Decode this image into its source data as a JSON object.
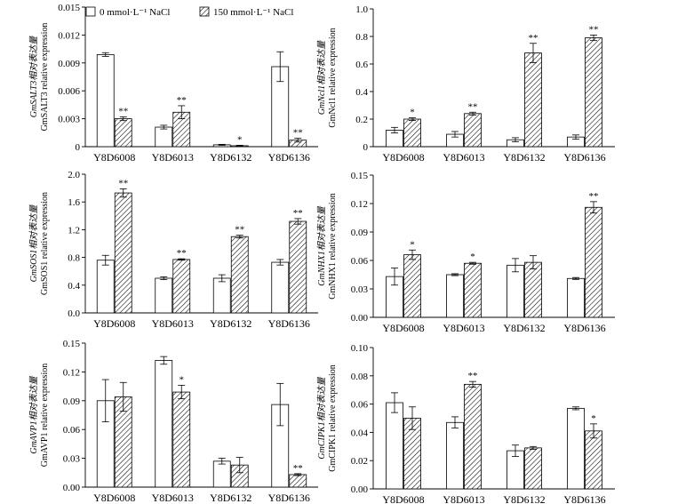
{
  "legend": {
    "ctrl_label": "0 mmol·L⁻¹ NaCl",
    "salt_label": "150 mmol·L⁻¹ NaCl"
  },
  "chart_data": [
    {
      "type": "bar",
      "categories": [
        "Y8D6008",
        "Y8D6013",
        "Y8D6132",
        "Y8D6136"
      ],
      "ylabel_cn": "GmSALT3相对表达量",
      "ylabel_en": "GmSALT3 relative expression",
      "ylim": [
        0,
        0.015
      ],
      "yticks": [
        "0",
        "0.003",
        "0.006",
        "0.009",
        "0.012",
        "0.015"
      ],
      "series": [
        {
          "name": "0 mmol·L⁻¹ NaCl",
          "values": [
            0.0099,
            0.0021,
            0.0002,
            0.0086
          ],
          "errors": [
            0.0002,
            0.0002,
            5e-05,
            0.0016
          ]
        },
        {
          "name": "150 mmol·L⁻¹ NaCl",
          "values": [
            0.003,
            0.0037,
            0.0001,
            0.0007
          ],
          "errors": [
            0.0002,
            0.0007,
            5e-05,
            0.0002
          ]
        }
      ],
      "annotations": [
        "**",
        "**",
        "*",
        "**"
      ]
    },
    {
      "type": "bar",
      "categories": [
        "Y8D6008",
        "Y8D6013",
        "Y8D6132",
        "Y8D6136"
      ],
      "ylabel_cn": "GmNcl1相对表达量",
      "ylabel_en": "GmNcl1 relative expression",
      "ylim": [
        0,
        1.0
      ],
      "yticks": [
        "0",
        "0.2",
        "0.4",
        "0.6",
        "0.8",
        "1.0"
      ],
      "series": [
        {
          "name": "0 mmol·L⁻¹ NaCl",
          "values": [
            0.12,
            0.09,
            0.05,
            0.07
          ],
          "errors": [
            0.02,
            0.02,
            0.015,
            0.015
          ]
        },
        {
          "name": "150 mmol·L⁻¹ NaCl",
          "values": [
            0.2,
            0.24,
            0.68,
            0.79
          ],
          "errors": [
            0.01,
            0.01,
            0.07,
            0.02
          ]
        }
      ],
      "annotations": [
        "*",
        "**",
        "**",
        "**"
      ]
    },
    {
      "type": "bar",
      "categories": [
        "Y8D6008",
        "Y8D6013",
        "Y8D6132",
        "Y8D6136"
      ],
      "ylabel_cn": "GmSOS1相对表达量",
      "ylabel_en": "GmSOS1 relative expression",
      "ylim": [
        0,
        2.0
      ],
      "yticks": [
        "0.0",
        "0.4",
        "0.8",
        "1.2",
        "1.6",
        "2.0"
      ],
      "series": [
        {
          "name": "0 mmol·L⁻¹ NaCl",
          "values": [
            0.76,
            0.5,
            0.5,
            0.73
          ],
          "errors": [
            0.07,
            0.02,
            0.05,
            0.04
          ]
        },
        {
          "name": "150 mmol·L⁻¹ NaCl",
          "values": [
            1.73,
            0.77,
            1.1,
            1.32
          ],
          "errors": [
            0.06,
            0.01,
            0.02,
            0.04
          ]
        }
      ],
      "annotations": [
        "**",
        "**",
        "**",
        "**"
      ]
    },
    {
      "type": "bar",
      "categories": [
        "Y8D6008",
        "Y8D6013",
        "Y8D6132",
        "Y8D6136"
      ],
      "ylabel_cn": "GmNHX1相对表达量",
      "ylabel_en": "GmNHX1 relative expression",
      "ylim": [
        0,
        0.15
      ],
      "yticks": [
        "0.00",
        "0.03",
        "0.06",
        "0.09",
        "0.12",
        "0.15"
      ],
      "series": [
        {
          "name": "0 mmol·L⁻¹ NaCl",
          "values": [
            0.043,
            0.045,
            0.055,
            0.041
          ],
          "errors": [
            0.009,
            0.001,
            0.007,
            0.001
          ]
        },
        {
          "name": "150 mmol·L⁻¹ NaCl",
          "values": [
            0.066,
            0.057,
            0.058,
            0.116
          ],
          "errors": [
            0.005,
            0.001,
            0.007,
            0.006
          ]
        }
      ],
      "annotations": [
        "*",
        "*",
        "",
        "**"
      ]
    },
    {
      "type": "bar",
      "categories": [
        "Y8D6008",
        "Y8D6013",
        "Y8D6132",
        "Y8D6136"
      ],
      "ylabel_cn": "GmAVP1相对表达量",
      "ylabel_en": "GmAVP1 relative expression",
      "ylim": [
        0,
        0.15
      ],
      "yticks": [
        "0.00",
        "0.03",
        "0.06",
        "0.09",
        "0.12",
        "0.15"
      ],
      "series": [
        {
          "name": "0 mmol·L⁻¹ NaCl",
          "values": [
            0.09,
            0.132,
            0.027,
            0.086
          ],
          "errors": [
            0.022,
            0.004,
            0.003,
            0.022
          ]
        },
        {
          "name": "150 mmol·L⁻¹ NaCl",
          "values": [
            0.094,
            0.099,
            0.023,
            0.013
          ],
          "errors": [
            0.015,
            0.007,
            0.008,
            0.001
          ]
        }
      ],
      "annotations": [
        "",
        "*",
        "",
        "**"
      ]
    },
    {
      "type": "bar",
      "categories": [
        "Y8D6008",
        "Y8D6013",
        "Y8D6132",
        "Y8D6136"
      ],
      "ylabel_cn": "GmCIPK1相对表达量",
      "ylabel_en": "GmCIPK1 relative expression",
      "ylim": [
        0,
        0.1
      ],
      "yticks": [
        "0.00",
        "0.02",
        "0.04",
        "0.06",
        "0.08",
        "0.10"
      ],
      "series": [
        {
          "name": "0 mmol·L⁻¹ NaCl",
          "values": [
            0.061,
            0.047,
            0.027,
            0.057
          ],
          "errors": [
            0.007,
            0.004,
            0.004,
            0.001
          ]
        },
        {
          "name": "150 mmol·L⁻¹ NaCl",
          "values": [
            0.05,
            0.074,
            0.029,
            0.041
          ],
          "errors": [
            0.008,
            0.002,
            0.001,
            0.005
          ]
        }
      ],
      "annotations": [
        "",
        "**",
        "",
        "*"
      ]
    }
  ]
}
